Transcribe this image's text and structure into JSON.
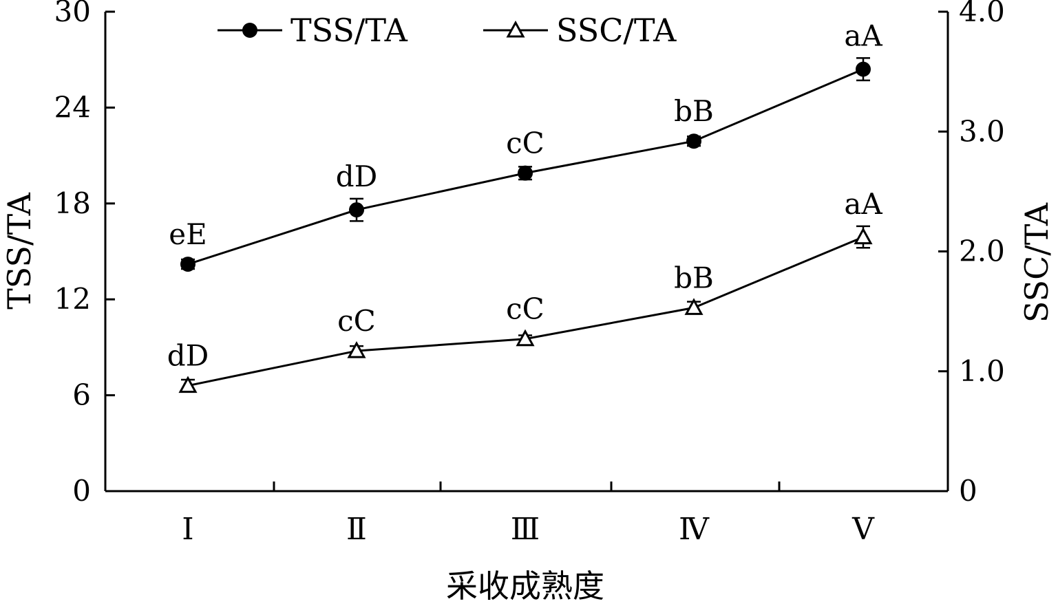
{
  "chart_data": {
    "type": "line",
    "categories": [
      "Ⅰ",
      "Ⅱ",
      "Ⅲ",
      "Ⅳ",
      "Ⅴ"
    ],
    "xlabel": "采收成熟度",
    "ylabel": "TSS/TA",
    "ylabel_right": "SSC/TA",
    "ylim": [
      0,
      30
    ],
    "yticks": [
      "0",
      "6",
      "12",
      "18",
      "24",
      "30"
    ],
    "ylim_right": [
      0,
      4.0
    ],
    "yticks_right": [
      "0",
      "1.0",
      "2.0",
      "3.0",
      "4.0"
    ],
    "legend_position": "top",
    "series": [
      {
        "name": "TSS/TA",
        "axis": "left",
        "marker": "filled-circle",
        "values": [
          14.2,
          17.6,
          19.9,
          21.9,
          26.4
        ],
        "errors": [
          0.3,
          0.7,
          0.4,
          0.3,
          0.7
        ],
        "labels": [
          "eE",
          "dD",
          "cC",
          "bB",
          "aA"
        ]
      },
      {
        "name": "SSC/TA",
        "axis": "right",
        "marker": "open-triangle",
        "values": [
          0.88,
          1.17,
          1.27,
          1.53,
          2.12
        ],
        "errors": [
          0.05,
          0.04,
          0.03,
          0.05,
          0.09
        ],
        "labels": [
          "dD",
          "cC",
          "cC",
          "bB",
          "aA"
        ]
      }
    ]
  }
}
